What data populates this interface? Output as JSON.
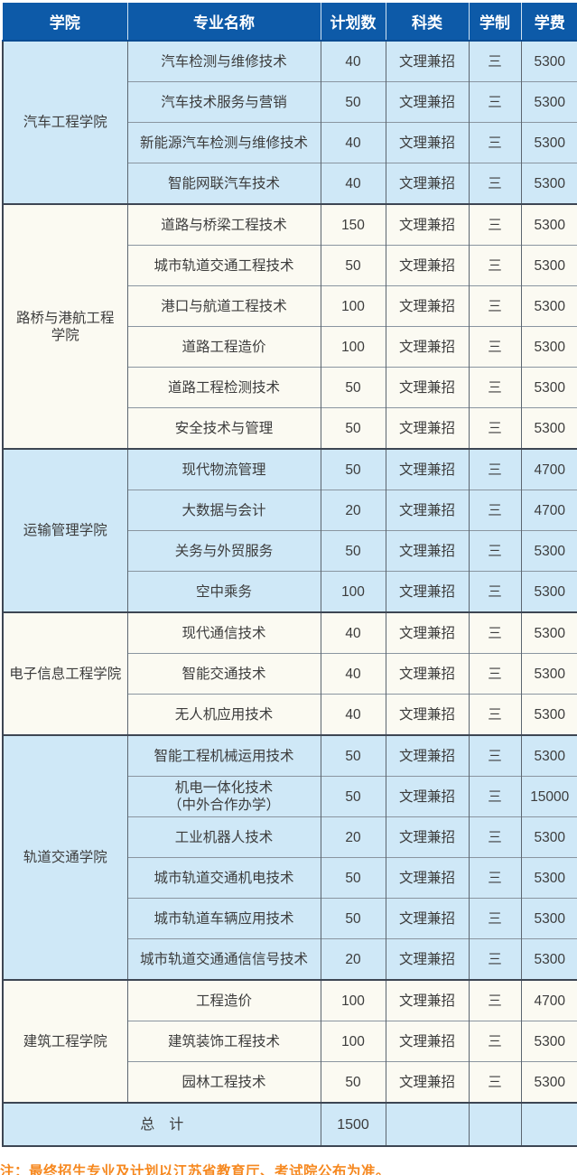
{
  "table": {
    "headers": [
      "学院",
      "专业名称",
      "计划数",
      "科类",
      "学制",
      "学费"
    ],
    "groups": [
      {
        "college": "汽车工程学院",
        "majors": [
          {
            "name": "汽车检测与维修技术",
            "plan": "40",
            "category": "文理兼招",
            "duration": "三",
            "tuition": "5300"
          },
          {
            "name": "汽车技术服务与营销",
            "plan": "50",
            "category": "文理兼招",
            "duration": "三",
            "tuition": "5300"
          },
          {
            "name": "新能源汽车检测与维修技术",
            "plan": "40",
            "category": "文理兼招",
            "duration": "三",
            "tuition": "5300"
          },
          {
            "name": "智能网联汽车技术",
            "plan": "40",
            "category": "文理兼招",
            "duration": "三",
            "tuition": "5300"
          }
        ]
      },
      {
        "college": "路桥与港航工程\n学院",
        "majors": [
          {
            "name": "道路与桥梁工程技术",
            "plan": "150",
            "category": "文理兼招",
            "duration": "三",
            "tuition": "5300"
          },
          {
            "name": "城市轨道交通工程技术",
            "plan": "50",
            "category": "文理兼招",
            "duration": "三",
            "tuition": "5300"
          },
          {
            "name": "港口与航道工程技术",
            "plan": "100",
            "category": "文理兼招",
            "duration": "三",
            "tuition": "5300"
          },
          {
            "name": "道路工程造价",
            "plan": "100",
            "category": "文理兼招",
            "duration": "三",
            "tuition": "5300"
          },
          {
            "name": "道路工程检测技术",
            "plan": "50",
            "category": "文理兼招",
            "duration": "三",
            "tuition": "5300"
          },
          {
            "name": "安全技术与管理",
            "plan": "50",
            "category": "文理兼招",
            "duration": "三",
            "tuition": "5300"
          }
        ]
      },
      {
        "college": "运输管理学院",
        "majors": [
          {
            "name": "现代物流管理",
            "plan": "50",
            "category": "文理兼招",
            "duration": "三",
            "tuition": "4700"
          },
          {
            "name": "大数据与会计",
            "plan": "20",
            "category": "文理兼招",
            "duration": "三",
            "tuition": "4700"
          },
          {
            "name": "关务与外贸服务",
            "plan": "50",
            "category": "文理兼招",
            "duration": "三",
            "tuition": "5300"
          },
          {
            "name": "空中乘务",
            "plan": "100",
            "category": "文理兼招",
            "duration": "三",
            "tuition": "5300"
          }
        ]
      },
      {
        "college": "电子信息工程学院",
        "majors": [
          {
            "name": "现代通信技术",
            "plan": "40",
            "category": "文理兼招",
            "duration": "三",
            "tuition": "5300"
          },
          {
            "name": "智能交通技术",
            "plan": "40",
            "category": "文理兼招",
            "duration": "三",
            "tuition": "5300"
          },
          {
            "name": "无人机应用技术",
            "plan": "40",
            "category": "文理兼招",
            "duration": "三",
            "tuition": "5300"
          }
        ]
      },
      {
        "college": "轨道交通学院",
        "majors": [
          {
            "name": "智能工程机械运用技术",
            "plan": "50",
            "category": "文理兼招",
            "duration": "三",
            "tuition": "5300"
          },
          {
            "name": "机电一体化技术\n（中外合作办学）",
            "plan": "50",
            "category": "文理兼招",
            "duration": "三",
            "tuition": "15000"
          },
          {
            "name": "工业机器人技术",
            "plan": "20",
            "category": "文理兼招",
            "duration": "三",
            "tuition": "5300"
          },
          {
            "name": "城市轨道交通机电技术",
            "plan": "50",
            "category": "文理兼招",
            "duration": "三",
            "tuition": "5300"
          },
          {
            "name": "城市轨道车辆应用技术",
            "plan": "50",
            "category": "文理兼招",
            "duration": "三",
            "tuition": "5300"
          },
          {
            "name": "城市轨道交通通信信号技术",
            "plan": "20",
            "category": "文理兼招",
            "duration": "三",
            "tuition": "5300"
          }
        ]
      },
      {
        "college": "建筑工程学院",
        "majors": [
          {
            "name": "工程造价",
            "plan": "100",
            "category": "文理兼招",
            "duration": "三",
            "tuition": "4700"
          },
          {
            "name": "建筑装饰工程技术",
            "plan": "100",
            "category": "文理兼招",
            "duration": "三",
            "tuition": "5300"
          },
          {
            "name": "园林工程技术",
            "plan": "50",
            "category": "文理兼招",
            "duration": "三",
            "tuition": "5300"
          }
        ]
      }
    ],
    "total": {
      "label": "总　计",
      "plan": "1500"
    }
  },
  "note": "注：最终招生专业及计划以江苏省教育厅、考试院公布为准。",
  "colors": {
    "header_bg": "#0d5aa8",
    "header_text": "#ffffff",
    "band_blue": "#cfe8f7",
    "band_cream": "#fbfaf2",
    "border_dark": "#3d4653",
    "border_light": "#8a95a0",
    "body_text": "#3c3c3c",
    "note_orange": "#f6881f"
  }
}
